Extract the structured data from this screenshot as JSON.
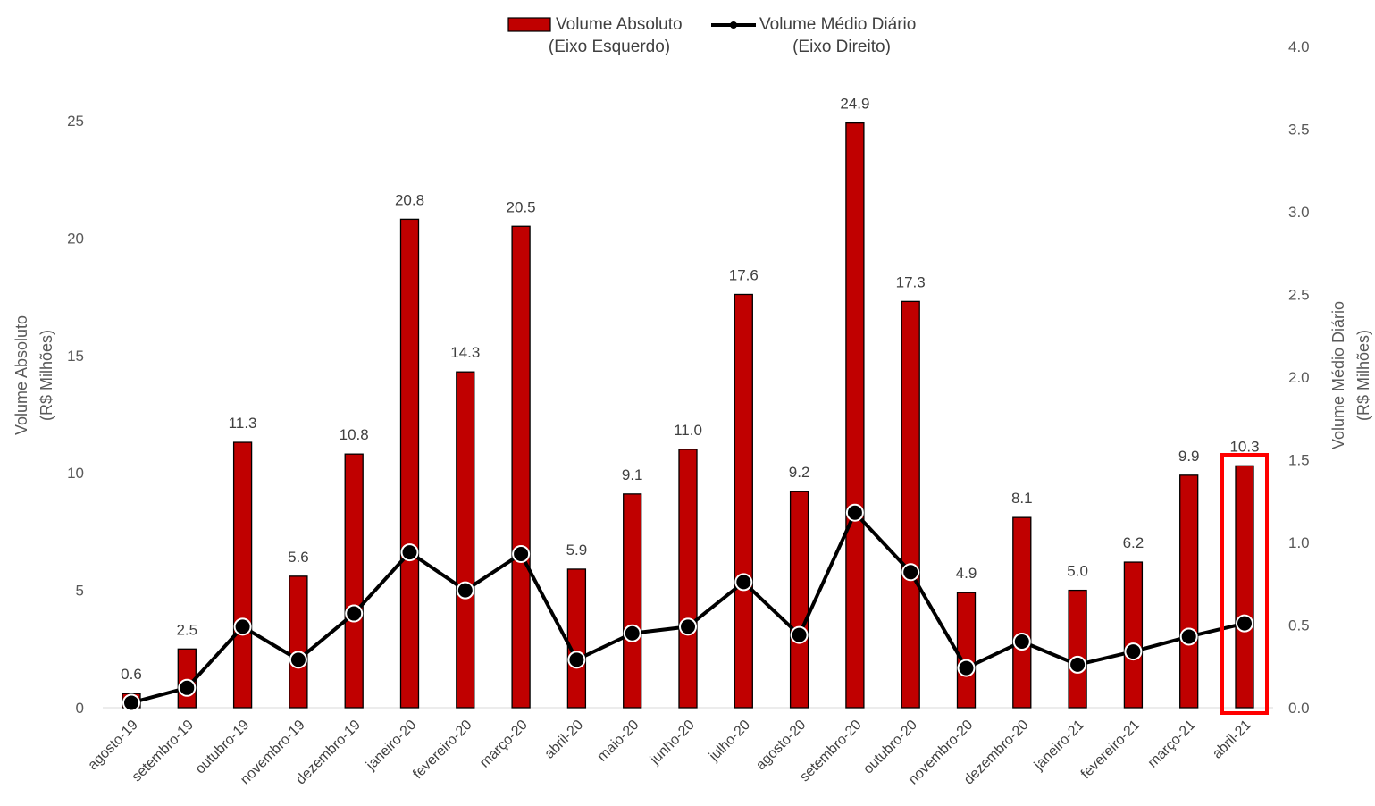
{
  "chart_data": {
    "type": "bar",
    "categories": [
      "agosto-19",
      "setembro-19",
      "outubro-19",
      "novembro-19",
      "dezembro-19",
      "janeiro-20",
      "fevereiro-20",
      "março-20",
      "abril-20",
      "maio-20",
      "junho-20",
      "julho-20",
      "agosto-20",
      "setembro-20",
      "outubro-20",
      "novembro-20",
      "dezembro-20",
      "janeiro-21",
      "fevereiro-21",
      "março-21",
      "abril-21"
    ],
    "series": [
      {
        "name": "Volume Absoluto",
        "legend_note": "(Eixo Esquerdo)",
        "type": "bar",
        "axis": "left",
        "color": "#c00000",
        "values": [
          0.6,
          2.5,
          11.3,
          5.6,
          10.8,
          20.8,
          14.3,
          20.5,
          5.9,
          9.1,
          11.0,
          17.6,
          9.2,
          24.9,
          17.3,
          4.9,
          8.1,
          5.0,
          6.2,
          9.9,
          10.3
        ],
        "data_labels": [
          "0.6",
          "2.5",
          "11.3",
          "5.6",
          "10.8",
          "20.8",
          "14.3",
          "20.5",
          "5.9",
          "9.1",
          "11.0",
          "17.6",
          "9.2",
          "24.9",
          "17.3",
          "4.9",
          "8.1",
          "5.0",
          "6.2",
          "9.9",
          "10.3"
        ]
      },
      {
        "name": "Volume Médio Diário",
        "legend_note": "(Eixo Direito)",
        "type": "line",
        "axis": "right",
        "color": "#000000",
        "values": [
          0.03,
          0.12,
          0.49,
          0.29,
          0.57,
          0.94,
          0.71,
          0.93,
          0.29,
          0.45,
          0.49,
          0.76,
          0.44,
          1.18,
          0.82,
          0.24,
          0.4,
          0.26,
          0.34,
          0.43,
          0.51
        ]
      }
    ],
    "y_left": {
      "label": "Volume Absoluto",
      "sublabel": "(R$ Milhões)",
      "ylim": [
        0,
        25
      ],
      "ticks": [
        "0",
        "5",
        "10",
        "15",
        "20",
        "25"
      ]
    },
    "y_right": {
      "label": "Volume Médio Diário",
      "sublabel": "(R$ Milhões)",
      "ylim": [
        0,
        4.0
      ],
      "ticks": [
        "0.0",
        "0.5",
        "1.0",
        "1.5",
        "2.0",
        "2.5",
        "3.0",
        "3.5",
        "4.0"
      ]
    },
    "highlight": {
      "category": "abril-21",
      "color": "#ff0000"
    },
    "legend_position": "top-center",
    "grid": false
  }
}
